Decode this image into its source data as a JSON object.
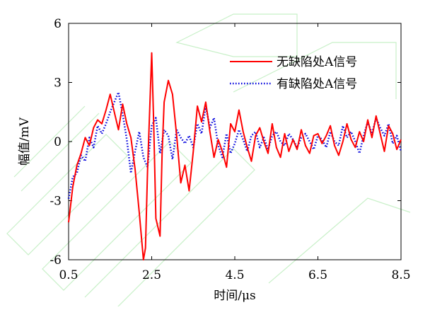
{
  "chart_data": {
    "type": "line",
    "title": "",
    "xlabel": "时间/μs",
    "ylabel": "幅值/mV",
    "xlim": [
      0.5,
      8.5
    ],
    "ylim": [
      -6,
      6
    ],
    "x_ticks": [
      0.5,
      2.5,
      4.5,
      6.5,
      8.5
    ],
    "x_tick_labels": [
      "0.5",
      "2.5",
      "4.5",
      "6.5",
      "8.5"
    ],
    "y_ticks": [
      -6,
      -3,
      0,
      3,
      6
    ],
    "y_tick_labels": [
      "-6",
      "-3",
      "0",
      "3",
      "6"
    ],
    "grid": false,
    "legend_position": "top-right",
    "series": [
      {
        "name": "无缺陷处A信号",
        "color": "#ff0000",
        "style": "solid",
        "x": [
          0.5,
          0.6,
          0.7,
          0.8,
          0.9,
          1.0,
          1.1,
          1.2,
          1.3,
          1.4,
          1.5,
          1.6,
          1.7,
          1.8,
          1.9,
          2.0,
          2.1,
          2.2,
          2.3,
          2.35,
          2.4,
          2.5,
          2.55,
          2.6,
          2.7,
          2.75,
          2.8,
          2.9,
          3.0,
          3.1,
          3.2,
          3.3,
          3.4,
          3.5,
          3.6,
          3.7,
          3.8,
          3.9,
          4.0,
          4.1,
          4.2,
          4.3,
          4.4,
          4.5,
          4.6,
          4.7,
          4.8,
          4.9,
          5.0,
          5.1,
          5.2,
          5.3,
          5.4,
          5.5,
          5.6,
          5.7,
          5.8,
          5.9,
          6.0,
          6.1,
          6.2,
          6.3,
          6.4,
          6.5,
          6.6,
          6.7,
          6.8,
          6.9,
          7.0,
          7.1,
          7.2,
          7.3,
          7.4,
          7.5,
          7.6,
          7.7,
          7.8,
          7.9,
          8.0,
          8.1,
          8.2,
          8.3,
          8.4,
          8.5
        ],
        "y": [
          -4.1,
          -2.3,
          -1.2,
          -0.6,
          0.2,
          -0.2,
          0.7,
          1.1,
          0.9,
          1.6,
          2.4,
          1.5,
          0.6,
          1.9,
          0.9,
          0.2,
          -1.4,
          -3.6,
          -6.0,
          -5.4,
          -1.5,
          4.5,
          0.8,
          -3.9,
          -4.8,
          -0.6,
          2.0,
          3.1,
          2.4,
          0.3,
          -2.1,
          -1.2,
          -2.5,
          -0.5,
          1.8,
          1.0,
          2.0,
          0.5,
          -0.8,
          0.1,
          -0.5,
          -1.3,
          0.9,
          0.5,
          1.6,
          0.5,
          -0.3,
          -1.0,
          0.3,
          0.7,
          0.0,
          -0.6,
          0.9,
          -0.3,
          -0.8,
          0.4,
          -0.5,
          0.1,
          -0.4,
          0.6,
          -0.2,
          -0.6,
          0.3,
          0.4,
          -0.1,
          0.3,
          0.8,
          -0.2,
          -0.7,
          0.0,
          0.9,
          0.1,
          -0.3,
          0.5,
          0.0,
          1.1,
          0.2,
          1.3,
          0.4,
          -0.5,
          0.8,
          0.4,
          -0.4,
          0.1
        ]
      },
      {
        "name": "有缺陷处A信号",
        "color": "#0000dd",
        "style": "dotted",
        "x": [
          0.5,
          0.6,
          0.7,
          0.8,
          0.9,
          1.0,
          1.1,
          1.2,
          1.3,
          1.4,
          1.5,
          1.6,
          1.7,
          1.8,
          1.9,
          2.0,
          2.1,
          2.2,
          2.3,
          2.4,
          2.5,
          2.6,
          2.7,
          2.8,
          2.9,
          3.0,
          3.1,
          3.2,
          3.3,
          3.4,
          3.5,
          3.6,
          3.7,
          3.8,
          3.9,
          4.0,
          4.1,
          4.2,
          4.3,
          4.4,
          4.5,
          4.6,
          4.7,
          4.8,
          4.9,
          5.0,
          5.1,
          5.2,
          5.3,
          5.4,
          5.5,
          5.6,
          5.7,
          5.8,
          5.9,
          6.0,
          6.1,
          6.2,
          6.3,
          6.4,
          6.5,
          6.6,
          6.7,
          6.8,
          6.9,
          7.0,
          7.1,
          7.2,
          7.3,
          7.4,
          7.5,
          7.6,
          7.7,
          7.8,
          7.9,
          8.0,
          8.1,
          8.2,
          8.3,
          8.4,
          8.5
        ],
        "y": [
          -2.9,
          -1.8,
          -1.6,
          -0.7,
          -1.0,
          0.2,
          -0.3,
          0.8,
          0.4,
          0.9,
          1.5,
          2.0,
          2.5,
          1.4,
          0.1,
          -1.6,
          -0.5,
          0.5,
          -0.8,
          -1.3,
          0.8,
          1.2,
          -0.6,
          0.6,
          0.3,
          -0.9,
          0.6,
          0.2,
          -0.1,
          0.3,
          -0.3,
          0.9,
          0.4,
          1.8,
          0.7,
          1.2,
          -0.2,
          -0.8,
          0.4,
          -0.6,
          -0.1,
          0.6,
          0.1,
          -0.5,
          0.3,
          0.5,
          -0.3,
          0.2,
          -0.4,
          0.3,
          0.5,
          0.0,
          -0.2,
          0.4,
          0.1,
          -0.3,
          0.2,
          0.4,
          0.0,
          -0.4,
          0.3,
          0.1,
          -0.3,
          0.5,
          0.0,
          -0.2,
          0.8,
          0.2,
          0.5,
          0.0,
          -0.6,
          0.3,
          1.0,
          0.4,
          1.2,
          0.7,
          0.3,
          0.9,
          -0.1,
          0.3,
          -0.5
        ]
      }
    ]
  }
}
